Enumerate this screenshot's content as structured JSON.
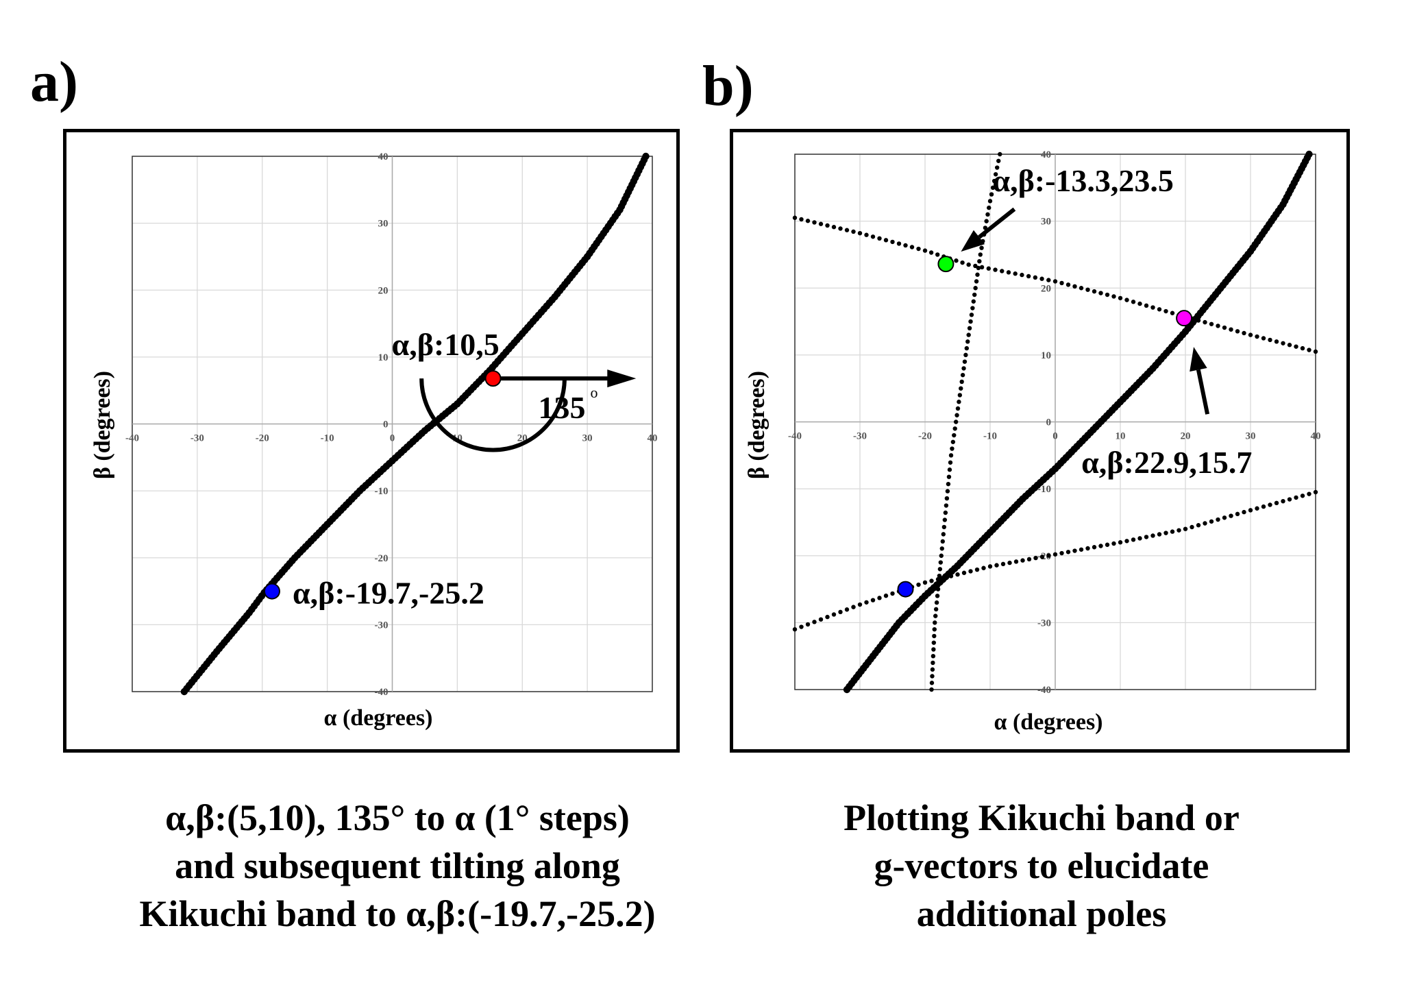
{
  "panel_a": {
    "letter": "a)",
    "caption_lines": [
      "α,β:(5,10), 135° to α (1° steps)",
      "and subsequent tilting along",
      "Kikuchi band to α,β:(-19.7,-25.2)"
    ]
  },
  "panel_b": {
    "letter": "b)",
    "caption_lines": [
      "Plotting Kikuchi band or",
      "g-vectors to elucidate",
      "additional poles"
    ]
  },
  "chart_data": [
    {
      "type": "scatter",
      "xlabel": "α (degrees)",
      "ylabel": "β (degrees)",
      "xlim": [
        -40,
        40
      ],
      "ylim": [
        -40,
        40
      ],
      "ticks": [
        -40,
        -30,
        -20,
        -10,
        0,
        10,
        20,
        30,
        40
      ],
      "grid": true,
      "series": [
        {
          "kind": "band-thick",
          "color": "#000000",
          "x": [
            -32,
            -27,
            -22,
            -19.7,
            -15,
            -10,
            -5,
            0,
            5,
            10,
            15,
            20,
            25,
            30,
            35,
            39
          ],
          "y": [
            -40,
            -34,
            -28.2,
            -25.2,
            -20,
            -15,
            -10,
            -5.5,
            -1,
            3,
            8,
            13.5,
            19,
            25,
            32,
            40
          ]
        }
      ],
      "points": [
        {
          "x": 15.5,
          "y": 6.8,
          "color": "#ff0000",
          "label": "α,β:10,5"
        },
        {
          "x": -18.5,
          "y": -25.0,
          "color": "#0000ff",
          "label": "α,β:-19.7,-25.2"
        }
      ],
      "annotation": {
        "angle_label": "135",
        "degree_sign": "o",
        "arrow": {
          "from": [
            15.5,
            6.8
          ],
          "to": [
            37.5,
            6.8
          ]
        },
        "arc": {
          "center": [
            15.5,
            6.8
          ],
          "radius": 11,
          "start_deg": 180,
          "end_deg": 360
        }
      }
    },
    {
      "type": "scatter",
      "xlabel": "α (degrees)",
      "ylabel": "β (degrees)",
      "xlim": [
        -40,
        40
      ],
      "ylim": [
        -40,
        40
      ],
      "ticks": [
        -40,
        -30,
        -20,
        -10,
        0,
        10,
        20,
        30,
        40
      ],
      "grid": true,
      "series": [
        {
          "kind": "band-thick",
          "color": "#000000",
          "x": [
            -32,
            -28,
            -24,
            -20,
            -15,
            -10,
            -5,
            0,
            5,
            10,
            15,
            20,
            25,
            30,
            35,
            39
          ],
          "y": [
            -40,
            -35,
            -30,
            -26,
            -21.5,
            -16.5,
            -11.5,
            -7,
            -2,
            3,
            8,
            13.5,
            19.5,
            25.5,
            32.5,
            40
          ]
        },
        {
          "kind": "band-dotted",
          "color": "#000000",
          "x": [
            -40,
            -30,
            -20,
            -13.3,
            0,
            10,
            20,
            30,
            40
          ],
          "y": [
            30.5,
            28.2,
            25.6,
            23.5,
            21,
            18.5,
            15.7,
            13,
            10.5
          ]
        },
        {
          "kind": "band-dotted",
          "color": "#000000",
          "x": [
            -19,
            -18.5,
            -17.5,
            -16,
            -14.5,
            -13,
            -11.5,
            -10,
            -8.5
          ],
          "y": [
            -40,
            -30,
            -20,
            -5,
            5,
            15,
            25,
            33,
            40
          ]
        },
        {
          "kind": "band-dotted",
          "color": "#000000",
          "x": [
            -40,
            -30,
            -20,
            -10,
            0,
            10,
            20,
            30,
            40
          ],
          "y": [
            -31,
            -27.3,
            -24,
            -21.6,
            -19.8,
            -18,
            -16,
            -13.2,
            -10.5
          ]
        }
      ],
      "points": [
        {
          "x": -16.8,
          "y": 23.6,
          "color": "#00ff00",
          "label": "α,β:-13.3,23.5"
        },
        {
          "x": 19.8,
          "y": 15.5,
          "color": "#ff00ff",
          "label": "α,β:22.9,15.7"
        },
        {
          "x": -23.0,
          "y": -25.0,
          "color": "#0000ff",
          "label": ""
        }
      ]
    }
  ]
}
